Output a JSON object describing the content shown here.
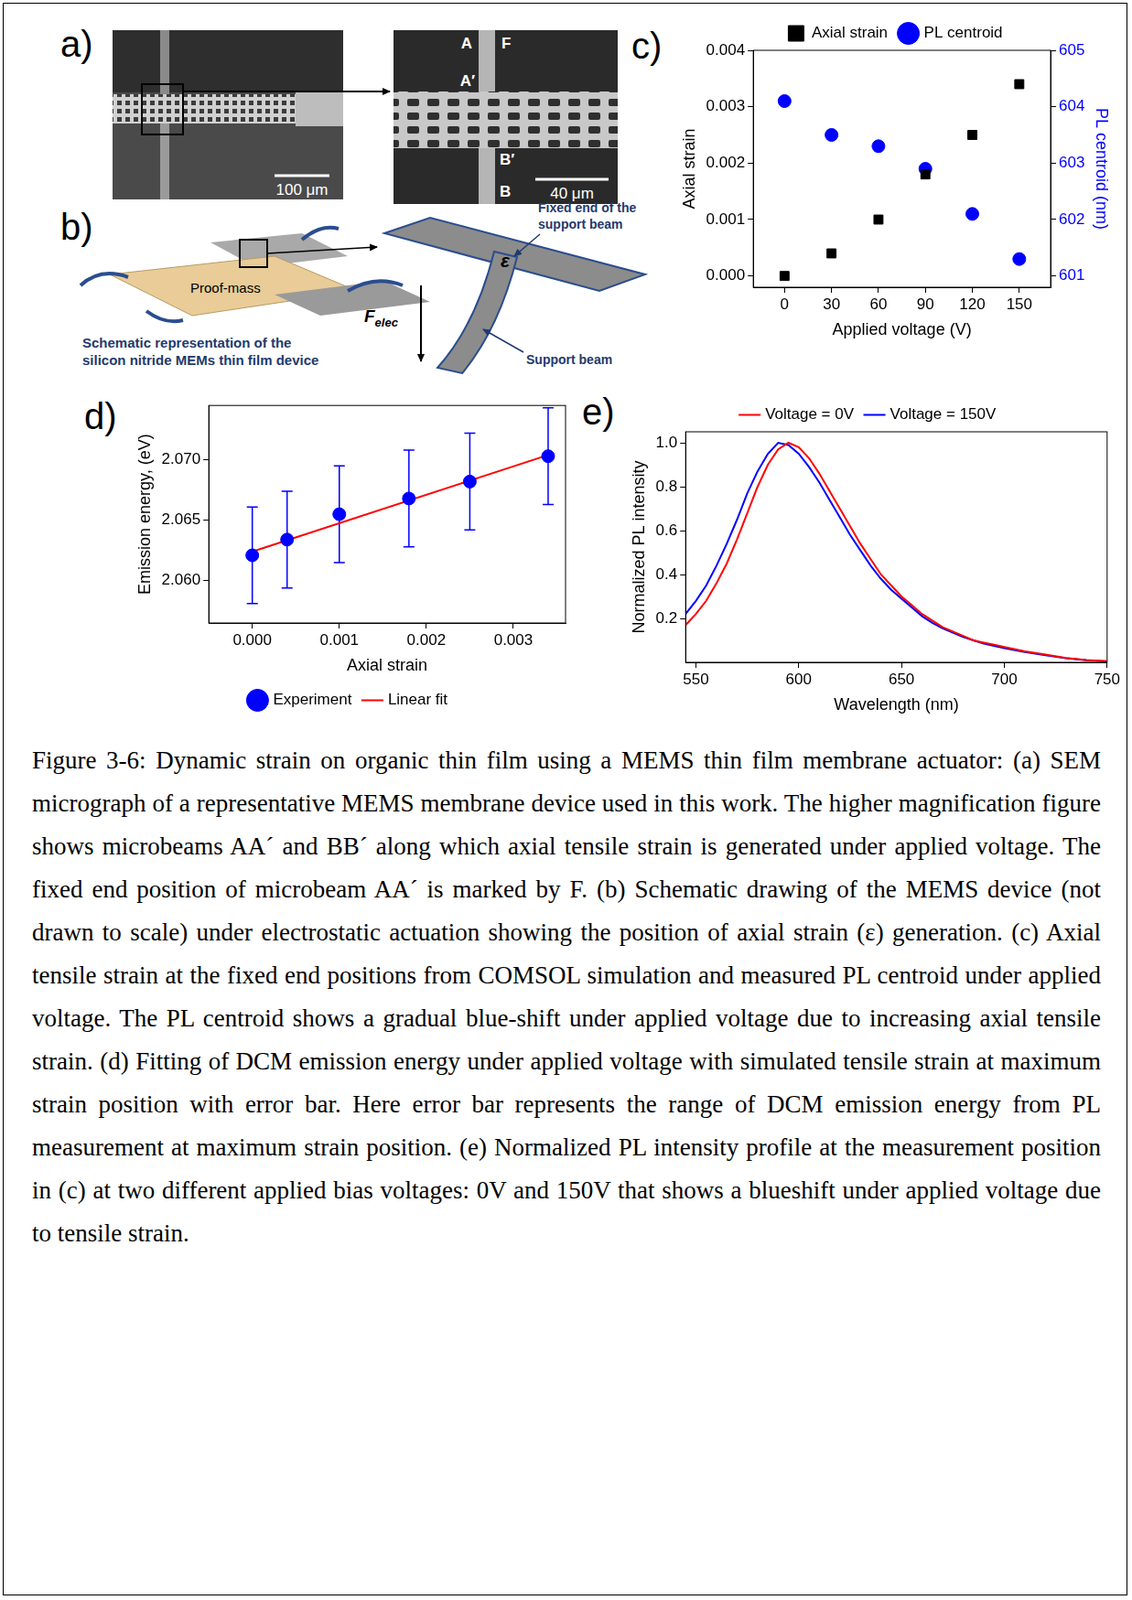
{
  "figure": {
    "panels": {
      "a": {
        "letter": "a)",
        "sem_overview": {
          "scale_bar": "100 μm"
        },
        "sem_zoom": {
          "scale_bar": "40 μm",
          "labels": {
            "A": "A",
            "F": "F",
            "A_prime": "A′",
            "B_prime": "B′",
            "B": "B"
          }
        }
      },
      "b": {
        "letter": "b)",
        "labels": {
          "proof_mass": "Proof-mass",
          "device": "Schematic representation of the silicon nitride MEMs thin film device",
          "force": {
            "symbol": "F",
            "subscript": "elec"
          },
          "strain": "ε",
          "fixed_end": "Fixed end of the support beam",
          "support_beam": "Support beam"
        }
      }
    },
    "caption": "Figure 3-6: Dynamic strain on organic thin film using a MEMS thin film membrane actuator: (a) SEM micrograph of a representative MEMS membrane device used in this work. The higher magnification figure shows microbeams AA´ and BB´ along which axial tensile strain is generated under applied voltage. The fixed end position of microbeam AA´ is marked by F. (b) Schematic drawing of the MEMS device (not drawn to scale) under electrostatic actuation showing the position of axial strain (ε) generation. (c) Axial tensile strain at the fixed end positions from COMSOL simulation and measured PL centroid under applied voltage. The PL centroid shows a gradual blue-shift under applied voltage due to increasing axial tensile strain. (d) Fitting of DCM emission energy under applied voltage with simulated tensile strain at maximum strain position with error bar. Here error bar represents the range of DCM emission energy from PL measurement at maximum strain position.  (e) Normalized PL intensity profile at the measurement position in (c) at two different applied bias voltages: 0V and 150V that shows a blueshift under applied voltage due to tensile strain."
  },
  "chart_data": [
    {
      "letter": "c)",
      "type": "scatter",
      "x": [
        0,
        30,
        60,
        90,
        120,
        150
      ],
      "xlabel": "Applied voltage (V)",
      "ylabel": "Axial strain",
      "y2label": "PL centroid (nm)",
      "xlim": [
        -20,
        170
      ],
      "xticks": [
        0,
        30,
        60,
        90,
        120,
        150
      ],
      "ylim": [
        -0.0002,
        0.004
      ],
      "yticks": [
        {
          "value": 0,
          "label": "0.000"
        },
        {
          "value": 0.001,
          "label": "0.001"
        },
        {
          "value": 0.002,
          "label": "0.002"
        },
        {
          "value": 0.003,
          "label": "0.003"
        },
        {
          "value": 0.004,
          "label": "0.004"
        }
      ],
      "y2lim": [
        600.8,
        605
      ],
      "y2ticks": [
        601,
        602,
        603,
        604,
        605
      ],
      "grid": false,
      "legend": "top",
      "series": [
        {
          "name": "Axial strain",
          "color": "#000000",
          "marker": "square",
          "values": [
            0,
            0.0004,
            0.001,
            0.0018,
            0.0025,
            0.0034
          ]
        },
        {
          "name": "PL centroid",
          "color": "#0000ff",
          "marker": "circle",
          "axis": "y2",
          "values": [
            604.1,
            603.5,
            603.3,
            602.9,
            602.1,
            601.3
          ]
        }
      ]
    },
    {
      "letter": "d)",
      "type": "scatter",
      "x": [
        0,
        0.0004,
        0.001,
        0.0018,
        0.0025,
        0.0034
      ],
      "xlabel": "Axial strain",
      "ylabel": "Emission energy, (eV)",
      "xlim": [
        -0.0005,
        0.0036
      ],
      "xticks": [
        {
          "value": 0,
          "label": "0.000"
        },
        {
          "value": 0.001,
          "label": "0.001"
        },
        {
          "value": 0.002,
          "label": "0.002"
        },
        {
          "value": 0.003,
          "label": "0.003"
        }
      ],
      "ylim": [
        2.0565,
        2.0745
      ],
      "yticks": [
        {
          "value": 2.06,
          "label": "2.060"
        },
        {
          "value": 2.065,
          "label": "2.065"
        },
        {
          "value": 2.07,
          "label": "2.070"
        }
      ],
      "grid": false,
      "legend": "bottom",
      "series": [
        {
          "name": "Experiment",
          "type": "scatter",
          "marker": "circle",
          "color": "#0000ff",
          "values": [
            2.0621,
            2.0634,
            2.0655,
            2.0668,
            2.0682,
            2.0703
          ],
          "errors": [
            0.004,
            0.004,
            0.004,
            0.004,
            0.004,
            0.004
          ]
        },
        {
          "name": "Linear fit",
          "type": "line",
          "line_style": "solid",
          "color": "#ff0000",
          "x": [
            0,
            0.0034
          ],
          "values": [
            2.0624,
            2.0704
          ]
        }
      ]
    },
    {
      "letter": "e)",
      "type": "line",
      "x": [
        545,
        550,
        555,
        560,
        565,
        570,
        575,
        580,
        585,
        590,
        595,
        600,
        605,
        610,
        615,
        620,
        625,
        630,
        635,
        640,
        645,
        650,
        655,
        660,
        665,
        670,
        675,
        680,
        685,
        690,
        695,
        700,
        710,
        720,
        730,
        740,
        750
      ],
      "xlabel": "Wavelength (nm)",
      "ylabel": "Normalized PL intensity",
      "xlim": [
        545,
        750
      ],
      "xticks": [
        550,
        600,
        650,
        700,
        750
      ],
      "ylim": [
        0,
        1.05
      ],
      "yticks": [
        0.2,
        0.4,
        0.6,
        0.8,
        {
          "value": 1,
          "label": "1.0"
        }
      ],
      "grid": false,
      "legend": "top",
      "series": [
        {
          "name": "Voltage = 0V",
          "color": "#ff0000",
          "line_style": "solid",
          "values": [
            0.17,
            0.22,
            0.28,
            0.36,
            0.45,
            0.56,
            0.68,
            0.8,
            0.9,
            0.97,
            1.0,
            0.98,
            0.93,
            0.86,
            0.78,
            0.7,
            0.62,
            0.54,
            0.47,
            0.4,
            0.35,
            0.3,
            0.26,
            0.22,
            0.19,
            0.16,
            0.14,
            0.12,
            0.1,
            0.09,
            0.08,
            0.07,
            0.05,
            0.035,
            0.02,
            0.01,
            0.005
          ]
        },
        {
          "name": "Voltage = 150V",
          "color": "#0000ff",
          "line_style": "solid",
          "values": [
            0.22,
            0.28,
            0.35,
            0.44,
            0.54,
            0.65,
            0.77,
            0.87,
            0.95,
            1.0,
            0.99,
            0.95,
            0.89,
            0.82,
            0.74,
            0.66,
            0.58,
            0.51,
            0.44,
            0.38,
            0.33,
            0.29,
            0.25,
            0.21,
            0.18,
            0.155,
            0.135,
            0.115,
            0.1,
            0.085,
            0.075,
            0.065,
            0.047,
            0.032,
            0.019,
            0.009,
            0.004
          ]
        }
      ]
    }
  ]
}
